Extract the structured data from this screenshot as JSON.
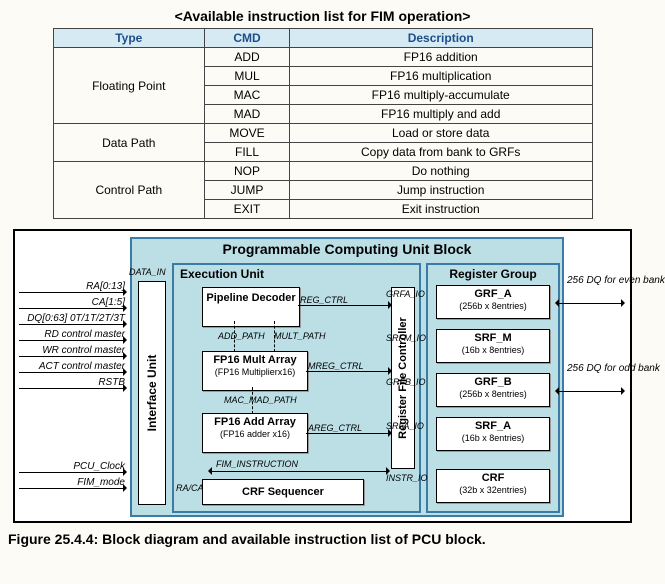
{
  "table": {
    "title": "<Available instruction list for FIM operation>",
    "headers": [
      "Type",
      "CMD",
      "Description"
    ],
    "groups": [
      {
        "type": "Floating Point",
        "rows": [
          {
            "cmd": "ADD",
            "desc": "FP16 addition"
          },
          {
            "cmd": "MUL",
            "desc": "FP16 multiplication"
          },
          {
            "cmd": "MAC",
            "desc": "FP16 multiply-accumulate"
          },
          {
            "cmd": "MAD",
            "desc": "FP16 multiply and add"
          }
        ]
      },
      {
        "type": "Data Path",
        "rows": [
          {
            "cmd": "MOVE",
            "desc": "Load or store data"
          },
          {
            "cmd": "FILL",
            "desc": "Copy data from bank to GRFs"
          }
        ]
      },
      {
        "type": "Control Path",
        "rows": [
          {
            "cmd": "NOP",
            "desc": "Do nothing"
          },
          {
            "cmd": "JUMP",
            "desc": "Jump instruction"
          },
          {
            "cmd": "EXIT",
            "desc": "Exit instruction"
          }
        ]
      }
    ]
  },
  "diagram": {
    "title": "Programmable Computing Unit Block",
    "exec_title": "Execution Unit",
    "reg_title": "Register Group",
    "iface": "Interface Unit",
    "rfc": "Register File Controller",
    "boxes": {
      "pipe": {
        "t": "Pipeline Decoder"
      },
      "mult": {
        "t": "FP16 Mult Array",
        "s": "(FP16 Multiplierx16)"
      },
      "add": {
        "t": "FP16 Add Array",
        "s": "(FP16 adder x16)"
      },
      "crfseq": {
        "t": "CRF Sequencer"
      },
      "grfa": {
        "t": "GRF_A",
        "s": "(256b x 8entries)"
      },
      "srfm": {
        "t": "SRF_M",
        "s": "(16b x 8entries)"
      },
      "grfb": {
        "t": "GRF_B",
        "s": "(256b x 8entries)"
      },
      "srfa": {
        "t": "SRF_A",
        "s": "(16b x 8entries)"
      },
      "crf": {
        "t": "CRF",
        "s": "(32b x 32entries)"
      }
    },
    "signals_left": [
      "RA[0:13]",
      "CA[1:5]",
      "DQ[0:63] 0T/1T/2T/3T",
      "RD control master",
      "WR control master",
      "ACT control master",
      "RSTB",
      "PCU_Clock",
      "FIM_mode"
    ],
    "labels": {
      "data_in": "DATA_IN",
      "reg_ctrl": "REG_CTRL",
      "add_path": "ADD_PATH",
      "mult_path": "MULT_PATH",
      "mreg": "MREG_CTRL",
      "mac_mad": "MAC_MAD_PATH",
      "areg": "AREG_CTRL",
      "fim_instr": "FIM_INSTRUCTION",
      "raca": "RA/CA",
      "grfa_io": "GRFA_IO",
      "srfm_io": "SRFM_IO",
      "grfb_io": "GRFB_IO",
      "srfa_io": "SRFA_IO",
      "instr_io": "INSTR_IO",
      "ext_even": "256 DQ for even bank",
      "ext_odd": "256 DQ for odd bank"
    },
    "colors": {
      "outer_bg": "#bcdfe6",
      "outer_border": "#3a7ca5",
      "box_bg": "#ffffff",
      "table_header_bg": "#d6eaf4"
    }
  },
  "caption": "Figure 25.4.4: Block diagram and available instruction list of PCU block."
}
